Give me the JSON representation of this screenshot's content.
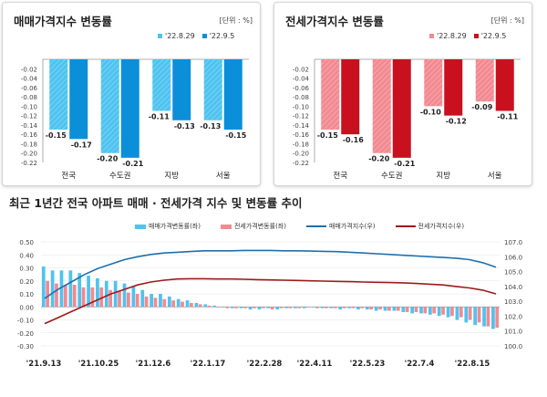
{
  "colors": {
    "sale_light": "#4fc3ef",
    "sale_dark": "#0b8fd9",
    "rent_light": "#f28a91",
    "rent_dark": "#c8101e",
    "sale_line": "#1f6fae",
    "rent_line": "#9c1b1b"
  },
  "chart_data": [
    {
      "type": "bar",
      "title": "매매가격지수 변동률",
      "unit": "[단위 : %]",
      "categories": [
        "전국",
        "수도권",
        "지방",
        "서울"
      ],
      "series": [
        {
          "name": "'22.8.29",
          "values": [
            -0.15,
            -0.2,
            -0.11,
            -0.13
          ],
          "labels": [
            "-0.15",
            "-0.20",
            "-0.11",
            "-0.13"
          ]
        },
        {
          "name": "'22.9.5",
          "values": [
            -0.17,
            -0.21,
            -0.13,
            -0.15
          ],
          "labels": [
            "-0.17",
            "-0.21",
            "-0.13",
            "-0.15"
          ]
        }
      ],
      "ylim": [
        -0.22,
        0.0
      ],
      "yticks": [
        "-0.02",
        "-0.04",
        "-0.06",
        "-0.08",
        "-0.10",
        "-0.12",
        "-0.14",
        "-0.16",
        "-0.18",
        "-0.20",
        "-0.22"
      ]
    },
    {
      "type": "bar",
      "title": "전세가격지수 변동률",
      "unit": "[단위 : %]",
      "categories": [
        "전국",
        "수도권",
        "지방",
        "서울"
      ],
      "series": [
        {
          "name": "'22.8.29",
          "values": [
            -0.15,
            -0.2,
            -0.1,
            -0.09
          ],
          "labels": [
            "-0.15",
            "-0.20",
            "-0.10",
            "-0.09"
          ]
        },
        {
          "name": "'22.9.5",
          "values": [
            -0.16,
            -0.21,
            -0.12,
            -0.11
          ],
          "labels": [
            "-0.16",
            "-0.21",
            "-0.12",
            "-0.11"
          ]
        }
      ],
      "ylim": [
        -0.22,
        0.0
      ],
      "yticks": [
        "-0.02",
        "-0.04",
        "-0.06",
        "-0.08",
        "-0.10",
        "-0.12",
        "-0.14",
        "-0.16",
        "-0.18",
        "-0.20",
        "-0.22"
      ]
    },
    {
      "type": "bar+line",
      "title": "최근 1년간 전국 아파트 매매 · 전세가격 지수 및 변동률 추이",
      "x_tick_labels": [
        "'21.9.13",
        "'21.10.25",
        "'21.12.6",
        "'22.1.17",
        "'22.2.28",
        "'22.4.11",
        "'22.5.23",
        "'22.7.4",
        "'22.8.15"
      ],
      "y_left_ticks": [
        "0.50",
        "0.40",
        "0.30",
        "0.20",
        "0.10",
        "0.00",
        "-0.10",
        "-0.20",
        "-0.30"
      ],
      "y_left_range": [
        -0.3,
        0.5
      ],
      "y_right_ticks": [
        "107.0",
        "106.0",
        "105.0",
        "104.0",
        "103.0",
        "102.0",
        "101.0",
        "100.0"
      ],
      "y_right_range": [
        100.0,
        107.0
      ],
      "bar_series": [
        {
          "name": "매매가격변동률(좌)",
          "values": [
            0.31,
            0.28,
            0.28,
            0.28,
            0.26,
            0.24,
            0.22,
            0.2,
            0.2,
            0.18,
            0.16,
            0.13,
            0.1,
            0.1,
            0.08,
            0.06,
            0.05,
            0.03,
            0.02,
            0.01,
            0.0,
            -0.01,
            -0.01,
            -0.02,
            -0.02,
            -0.01,
            -0.02,
            -0.01,
            -0.01,
            -0.01,
            0.0,
            -0.01,
            -0.01,
            -0.02,
            -0.01,
            -0.02,
            -0.02,
            -0.03,
            -0.03,
            -0.03,
            -0.04,
            -0.05,
            -0.05,
            -0.06,
            -0.07,
            -0.08,
            -0.1,
            -0.12,
            -0.14,
            -0.15,
            -0.17
          ]
        },
        {
          "name": "전세가격변동률(좌)",
          "values": [
            0.2,
            0.18,
            0.17,
            0.17,
            0.15,
            0.15,
            0.15,
            0.13,
            0.12,
            0.11,
            0.1,
            0.08,
            0.07,
            0.06,
            0.05,
            0.04,
            0.03,
            0.02,
            0.01,
            0.0,
            -0.01,
            -0.01,
            -0.01,
            -0.01,
            -0.01,
            -0.02,
            -0.01,
            -0.01,
            -0.01,
            0.0,
            -0.01,
            -0.01,
            -0.01,
            -0.01,
            -0.01,
            -0.01,
            -0.02,
            -0.02,
            -0.03,
            -0.03,
            -0.04,
            -0.04,
            -0.05,
            -0.05,
            -0.06,
            -0.07,
            -0.08,
            -0.1,
            -0.12,
            -0.15,
            -0.16
          ]
        }
      ],
      "line_series": [
        {
          "name": "매매가격지수(우)",
          "values": [
            103.2,
            103.8,
            104.3,
            104.8,
            105.2,
            105.5,
            105.8,
            106.0,
            106.15,
            106.25,
            106.3,
            106.35,
            106.4,
            106.4,
            106.4,
            106.42,
            106.42,
            106.42,
            106.4,
            106.4,
            106.38,
            106.36,
            106.34,
            106.3,
            106.25,
            106.2,
            106.15,
            106.1,
            106.05,
            106.0,
            105.95,
            105.9,
            105.8,
            105.6,
            105.3
          ]
        },
        {
          "name": "전세가격지수(우)",
          "values": [
            101.5,
            101.9,
            102.3,
            102.7,
            103.1,
            103.5,
            103.8,
            104.1,
            104.3,
            104.42,
            104.5,
            104.52,
            104.52,
            104.5,
            104.5,
            104.48,
            104.46,
            104.44,
            104.42,
            104.4,
            104.38,
            104.36,
            104.34,
            104.32,
            104.3,
            104.28,
            104.26,
            104.24,
            104.2,
            104.15,
            104.1,
            104.0,
            103.9,
            103.75,
            103.5
          ]
        }
      ]
    }
  ]
}
